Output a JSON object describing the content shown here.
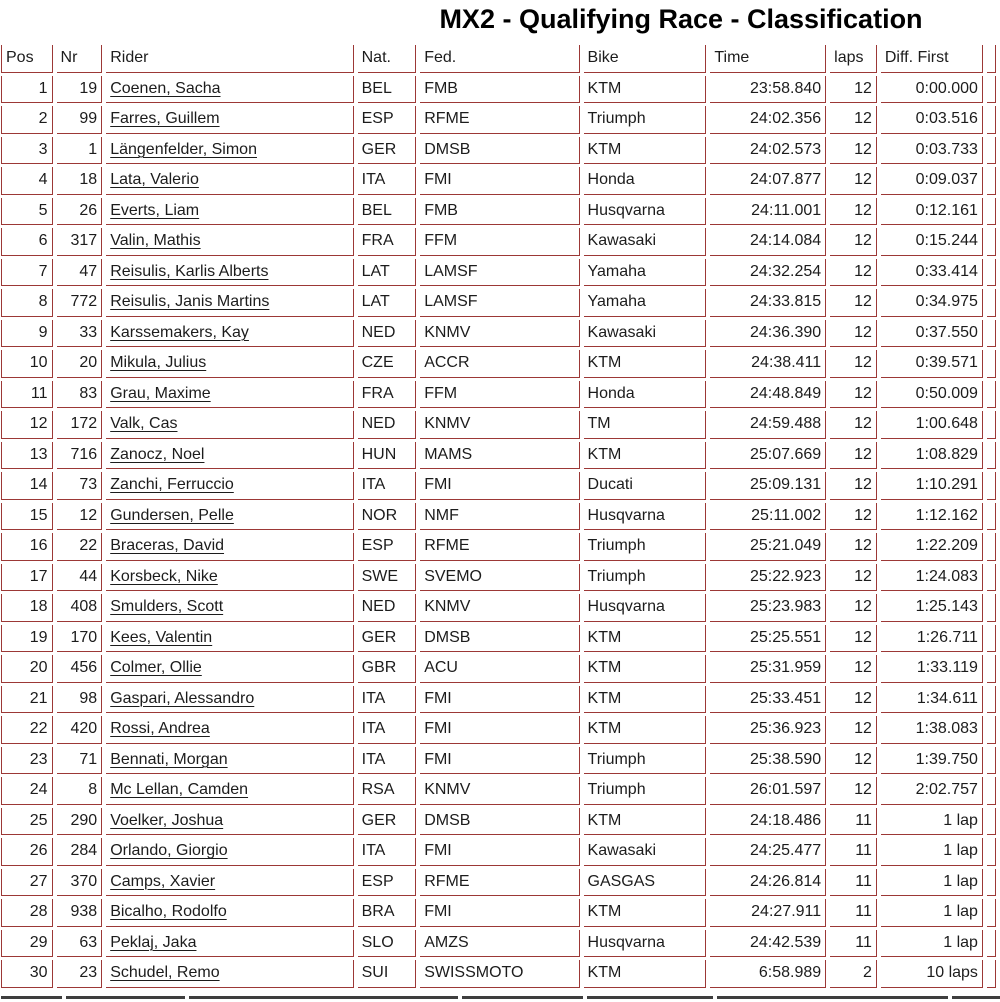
{
  "page": {
    "title": "MX2 - Qualifying Race - Classification"
  },
  "table": {
    "columns": [
      {
        "id": "pos",
        "label": "Pos"
      },
      {
        "id": "nr",
        "label": "Nr"
      },
      {
        "id": "rider",
        "label": "Rider"
      },
      {
        "id": "nat",
        "label": "Nat."
      },
      {
        "id": "fed",
        "label": "Fed."
      },
      {
        "id": "bike",
        "label": "Bike"
      },
      {
        "id": "time",
        "label": "Time"
      },
      {
        "id": "laps",
        "label": "laps"
      },
      {
        "id": "diff_first",
        "label": "Diff. First"
      }
    ],
    "rows": [
      [
        "1",
        "19",
        "Coenen, Sacha",
        "BEL",
        "FMB",
        "KTM",
        "23:58.840",
        "12",
        "0:00.000"
      ],
      [
        "2",
        "99",
        "Farres, Guillem",
        "ESP",
        "RFME",
        "Triumph",
        "24:02.356",
        "12",
        "0:03.516"
      ],
      [
        "3",
        "1",
        "Längenfelder, Simon",
        "GER",
        "DMSB",
        "KTM",
        "24:02.573",
        "12",
        "0:03.733"
      ],
      [
        "4",
        "18",
        "Lata, Valerio",
        "ITA",
        "FMI",
        "Honda",
        "24:07.877",
        "12",
        "0:09.037"
      ],
      [
        "5",
        "26",
        "Everts, Liam",
        "BEL",
        "FMB",
        "Husqvarna",
        "24:11.001",
        "12",
        "0:12.161"
      ],
      [
        "6",
        "317",
        "Valin, Mathis",
        "FRA",
        "FFM",
        "Kawasaki",
        "24:14.084",
        "12",
        "0:15.244"
      ],
      [
        "7",
        "47",
        "Reisulis, Karlis Alberts",
        "LAT",
        "LAMSF",
        "Yamaha",
        "24:32.254",
        "12",
        "0:33.414"
      ],
      [
        "8",
        "772",
        "Reisulis, Janis Martins",
        "LAT",
        "LAMSF",
        "Yamaha",
        "24:33.815",
        "12",
        "0:34.975"
      ],
      [
        "9",
        "33",
        "Karssemakers, Kay",
        "NED",
        "KNMV",
        "Kawasaki",
        "24:36.390",
        "12",
        "0:37.550"
      ],
      [
        "10",
        "20",
        "Mikula, Julius",
        "CZE",
        "ACCR",
        "KTM",
        "24:38.411",
        "12",
        "0:39.571"
      ],
      [
        "11",
        "83",
        "Grau, Maxime",
        "FRA",
        "FFM",
        "Honda",
        "24:48.849",
        "12",
        "0:50.009"
      ],
      [
        "12",
        "172",
        "Valk, Cas",
        "NED",
        "KNMV",
        "TM",
        "24:59.488",
        "12",
        "1:00.648"
      ],
      [
        "13",
        "716",
        "Zanocz, Noel",
        "HUN",
        "MAMS",
        "KTM",
        "25:07.669",
        "12",
        "1:08.829"
      ],
      [
        "14",
        "73",
        "Zanchi, Ferruccio",
        "ITA",
        "FMI",
        "Ducati",
        "25:09.131",
        "12",
        "1:10.291"
      ],
      [
        "15",
        "12",
        "Gundersen, Pelle",
        "NOR",
        "NMF",
        "Husqvarna",
        "25:11.002",
        "12",
        "1:12.162"
      ],
      [
        "16",
        "22",
        "Braceras, David",
        "ESP",
        "RFME",
        "Triumph",
        "25:21.049",
        "12",
        "1:22.209"
      ],
      [
        "17",
        "44",
        "Korsbeck, Nike",
        "SWE",
        "SVEMO",
        "Triumph",
        "25:22.923",
        "12",
        "1:24.083"
      ],
      [
        "18",
        "408",
        "Smulders, Scott",
        "NED",
        "KNMV",
        "Husqvarna",
        "25:23.983",
        "12",
        "1:25.143"
      ],
      [
        "19",
        "170",
        "Kees, Valentin",
        "GER",
        "DMSB",
        "KTM",
        "25:25.551",
        "12",
        "1:26.711"
      ],
      [
        "20",
        "456",
        "Colmer, Ollie",
        "GBR",
        "ACU",
        "KTM",
        "25:31.959",
        "12",
        "1:33.119"
      ],
      [
        "21",
        "98",
        "Gaspari, Alessandro",
        "ITA",
        "FMI",
        "KTM",
        "25:33.451",
        "12",
        "1:34.611"
      ],
      [
        "22",
        "420",
        "Rossi, Andrea",
        "ITA",
        "FMI",
        "KTM",
        "25:36.923",
        "12",
        "1:38.083"
      ],
      [
        "23",
        "71",
        "Bennati, Morgan",
        "ITA",
        "FMI",
        "Triumph",
        "25:38.590",
        "12",
        "1:39.750"
      ],
      [
        "24",
        "8",
        "Mc Lellan, Camden",
        "RSA",
        "KNMV",
        "Triumph",
        "26:01.597",
        "12",
        "2:02.757"
      ],
      [
        "25",
        "290",
        "Voelker, Joshua",
        "GER",
        "DMSB",
        "KTM",
        "24:18.486",
        "11",
        "1 lap"
      ],
      [
        "26",
        "284",
        "Orlando, Giorgio",
        "ITA",
        "FMI",
        "Kawasaki",
        "24:25.477",
        "11",
        "1 lap"
      ],
      [
        "27",
        "370",
        "Camps, Xavier",
        "ESP",
        "RFME",
        "GASGAS",
        "24:26.814",
        "11",
        "1 lap"
      ],
      [
        "28",
        "938",
        "Bicalho, Rodolfo",
        "BRA",
        "FMI",
        "KTM",
        "24:27.911",
        "11",
        "1 lap"
      ],
      [
        "29",
        "63",
        "Peklaj, Jaka",
        "SLO",
        "AMZS",
        "Husqvarna",
        "24:42.539",
        "11",
        "1 lap"
      ],
      [
        "30",
        "23",
        "Schudel, Remo",
        "SUI",
        "SWISSMOTO",
        "KTM",
        "6:58.989",
        "2",
        "10 laps"
      ]
    ]
  },
  "colors": {
    "table_border": "#9c3836",
    "text": "#1c1c1c",
    "divider": "#3e3e3e"
  }
}
